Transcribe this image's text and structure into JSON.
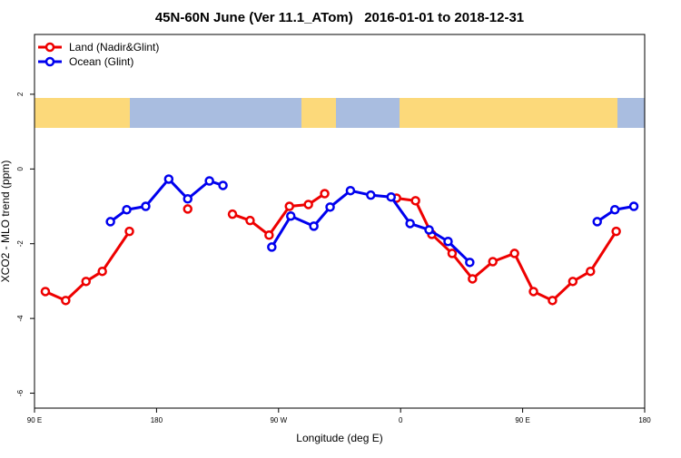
{
  "chart_data": {
    "type": "line",
    "title": "45N-60N June (Ver 11.1_ATom)   2016-01-01 to 2018-12-31",
    "xlabel": "Longitude (deg E)",
    "ylabel": "XCO2 - MLO trend (ppm)",
    "xlim": [
      90,
      540
    ],
    "ylim": [
      -6.4,
      3.6
    ],
    "xticks": [
      {
        "value": 90,
        "label": "90 E"
      },
      180,
      {
        "value": 270,
        "label": "90 W"
      },
      {
        "value": 360,
        "label": "0"
      },
      {
        "value": 450,
        "label": "90 E"
      },
      {
        "value": 540,
        "label": "180"
      }
    ],
    "yticks": [
      -6,
      -4,
      -2,
      0,
      2
    ],
    "legend": "top-left",
    "series": [
      {
        "name": "Land (Nadir&Glint)",
        "color": "#ee0000",
        "x": [
          98,
          113,
          128,
          140,
          160,
          null,
          203,
          null,
          236,
          249,
          263,
          278,
          292,
          304,
          null,
          357,
          371,
          383,
          398,
          413,
          428,
          444,
          458,
          472,
          487,
          500,
          519
        ],
        "values": [
          -3.28,
          -3.52,
          -3.01,
          -2.74,
          -1.67,
          null,
          -1.07,
          null,
          -1.21,
          -1.38,
          -1.77,
          -1.0,
          -0.95,
          -0.66,
          null,
          -0.78,
          -0.85,
          -1.75,
          -2.26,
          -2.94,
          -2.48,
          -2.26,
          -3.28,
          -3.52,
          -3.01,
          -2.74,
          -1.67
        ]
      },
      {
        "name": "Ocean (Glint)",
        "color": "#0000ee",
        "x": [
          146,
          158,
          172,
          189,
          203,
          219,
          229,
          null,
          265,
          279,
          296,
          308,
          323,
          338,
          353,
          367,
          381,
          395,
          411,
          null,
          505,
          518,
          532
        ],
        "values": [
          -1.41,
          -1.09,
          -1.0,
          -0.27,
          -0.8,
          -0.32,
          -0.44,
          null,
          -2.09,
          -1.26,
          -1.53,
          -1.02,
          -0.58,
          -0.7,
          -0.75,
          -1.46,
          -1.63,
          -1.94,
          -2.5,
          null,
          -1.41,
          -1.09,
          -1.0
        ]
      }
    ]
  }
}
